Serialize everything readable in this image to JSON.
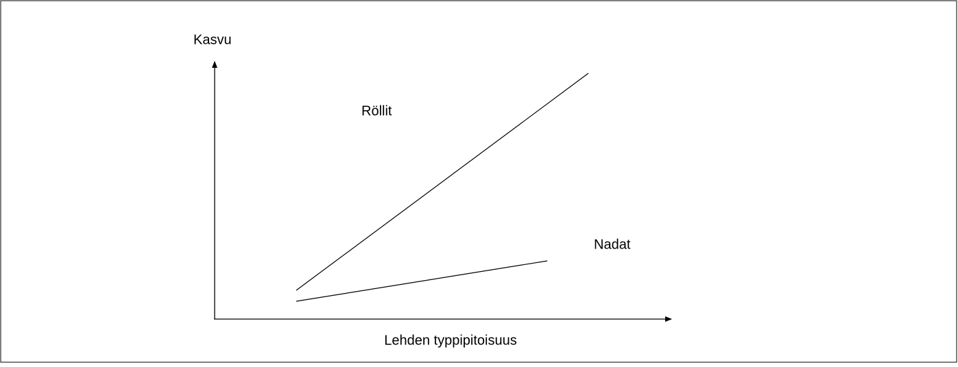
{
  "y_axis_label": "Kasvu",
  "x_axis_label": "Lehden typpipitoisuus",
  "curves": [
    {
      "label": "Röllit"
    },
    {
      "label": "Nadat"
    }
  ]
}
